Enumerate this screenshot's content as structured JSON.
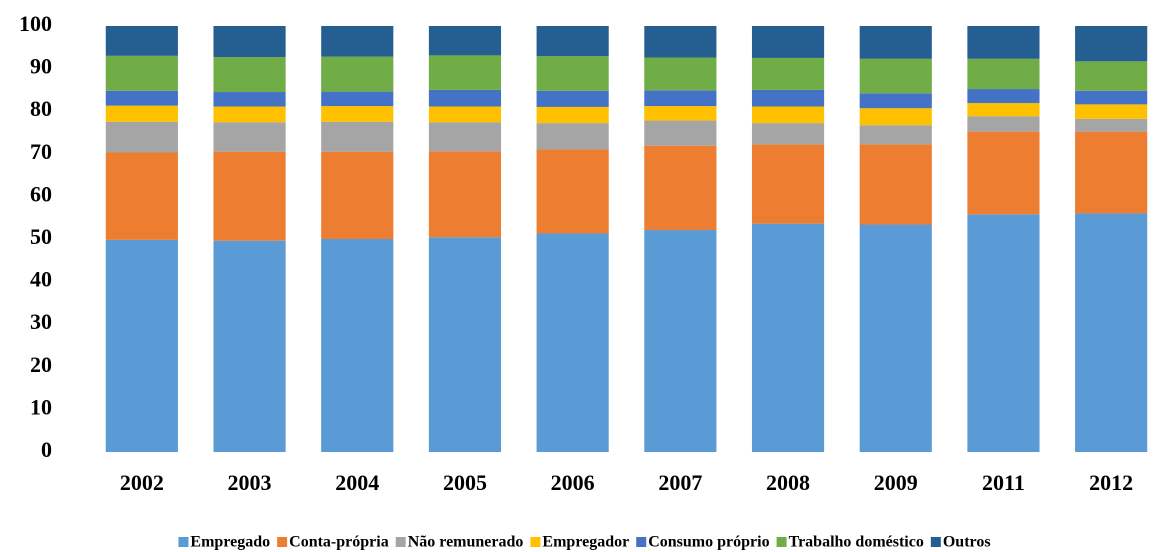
{
  "chart_data": {
    "type": "stacked-bar",
    "categories": [
      "2002",
      "2003",
      "2004",
      "2005",
      "2006",
      "2007",
      "2008",
      "2009",
      "2011",
      "2012"
    ],
    "series": [
      {
        "name": "Empregado",
        "color": "#5b9bd5",
        "values": [
          49.8,
          49.6,
          50.0,
          50.4,
          51.3,
          52.1,
          53.6,
          53.4,
          55.8,
          56.0
        ]
      },
      {
        "name": "Conta-própria",
        "color": "#ed7d31",
        "values": [
          20.5,
          20.9,
          20.5,
          20.2,
          19.7,
          19.8,
          18.6,
          18.8,
          19.4,
          19.2
        ]
      },
      {
        "name": "Não remunerado",
        "color": "#a5a5a5",
        "values": [
          7.2,
          6.9,
          7.0,
          6.8,
          6.2,
          5.9,
          5.0,
          4.5,
          3.6,
          3.0
        ]
      },
      {
        "name": "Empregador",
        "color": "#ffc000",
        "values": [
          3.8,
          3.7,
          3.7,
          3.7,
          3.8,
          3.4,
          3.9,
          4.0,
          3.1,
          3.4
        ]
      },
      {
        "name": "Consumo próprio",
        "color": "#4472c4",
        "values": [
          3.5,
          3.4,
          3.4,
          3.9,
          3.8,
          3.7,
          3.9,
          3.5,
          3.3,
          3.2
        ]
      },
      {
        "name": "Trabalho doméstico",
        "color": "#70ad47",
        "values": [
          8.2,
          8.2,
          8.2,
          8.1,
          8.1,
          7.7,
          7.5,
          8.1,
          7.1,
          6.9
        ]
      },
      {
        "name": "Outros",
        "color": "#255e91",
        "values": [
          7.0,
          7.3,
          7.2,
          6.9,
          7.1,
          7.4,
          7.5,
          7.7,
          7.7,
          8.3
        ]
      }
    ],
    "ylim": [
      0,
      100
    ],
    "yticks": [
      0,
      10,
      20,
      30,
      40,
      50,
      60,
      70,
      80,
      90,
      100
    ],
    "grid": false,
    "legend": "bottom"
  }
}
